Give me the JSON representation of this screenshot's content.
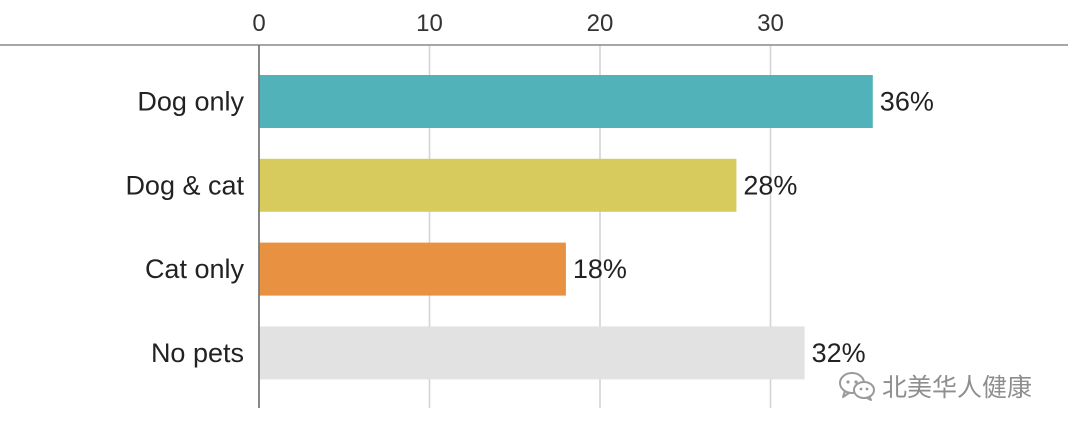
{
  "chart_data": {
    "type": "bar",
    "orientation": "horizontal",
    "categories": [
      "Dog only",
      "Dog & cat",
      "Cat only",
      "No pets"
    ],
    "values": [
      36,
      28,
      18,
      32
    ],
    "value_labels": [
      "36%",
      "28%",
      "18%",
      "32%"
    ],
    "colors": [
      "#52b2ba",
      "#d6cb5c",
      "#e89140",
      "#e2e2e2"
    ],
    "xlim": [
      0,
      36
    ],
    "x_ticks": [
      0,
      10,
      20,
      30
    ],
    "x_tick_labels": [
      "0",
      "10",
      "20",
      "30"
    ],
    "x_axis_position": "top",
    "grid": true,
    "title": "",
    "xlabel": "",
    "ylabel": ""
  },
  "watermark": {
    "text": "北美华人健康",
    "icon": "wechat-icon"
  }
}
